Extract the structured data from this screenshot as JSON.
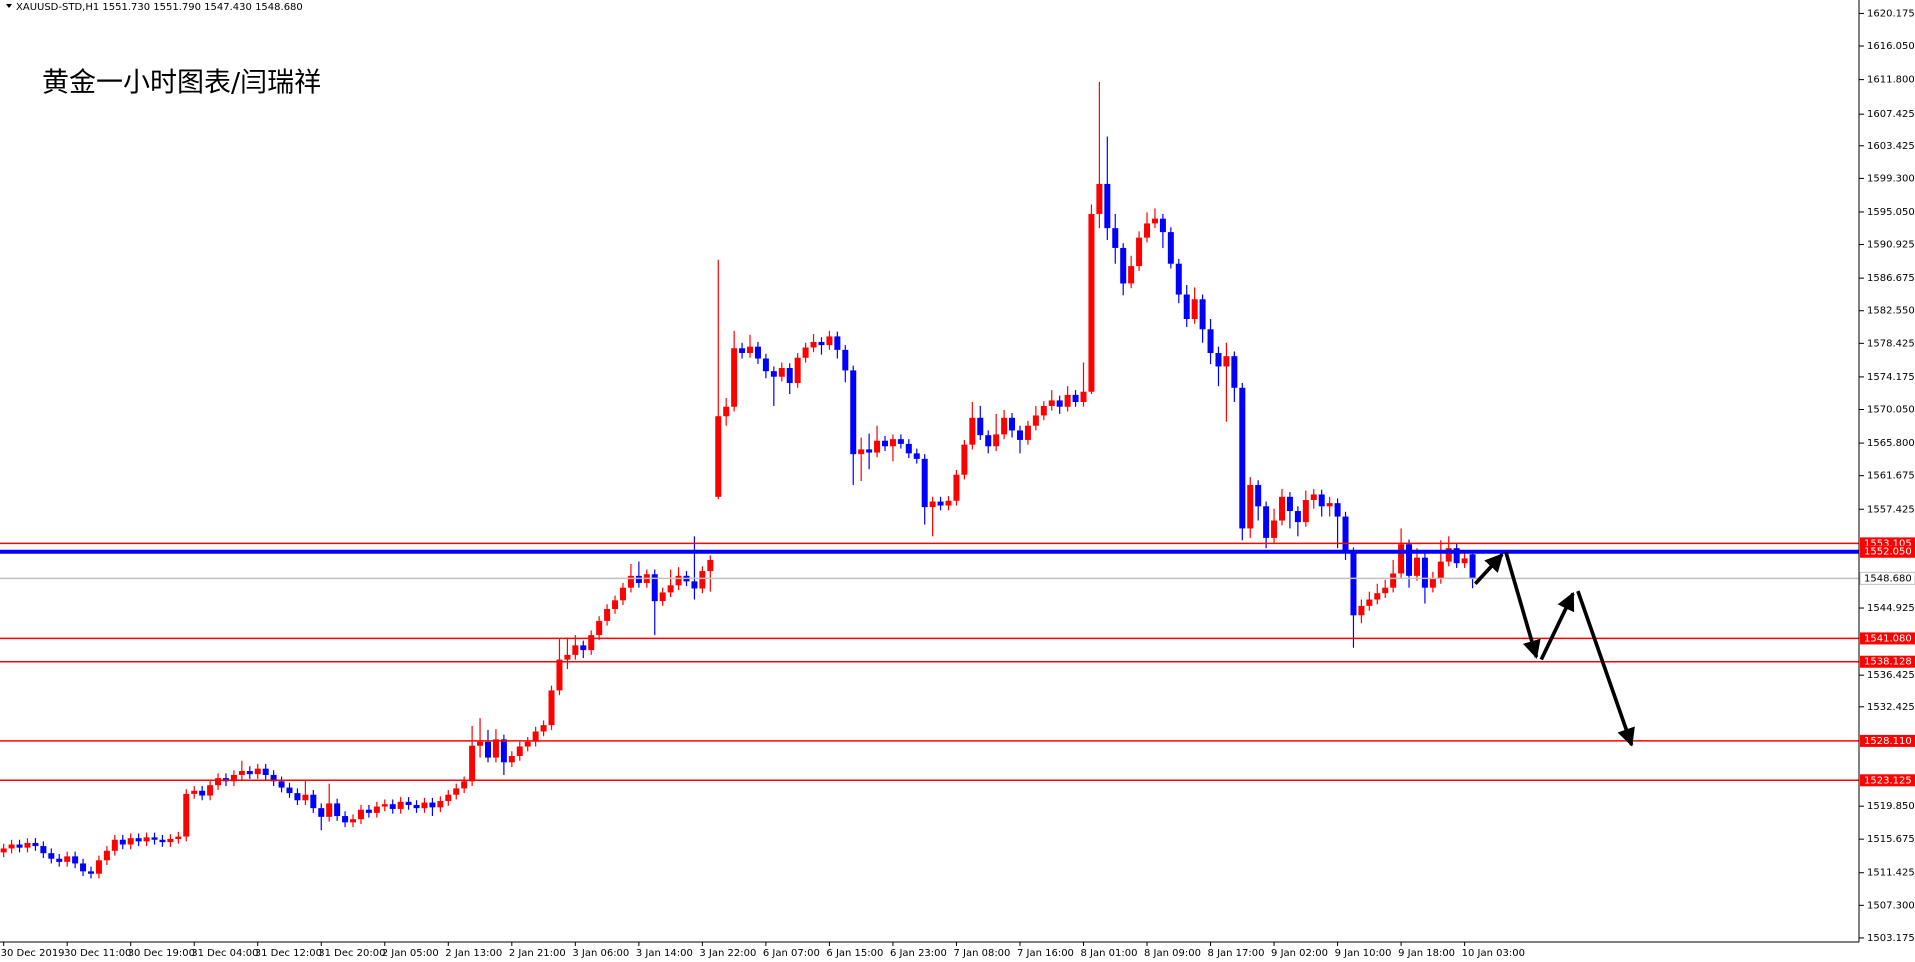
{
  "chart_data": {
    "type": "candlestick",
    "header": "XAUUSD-STD,H1 1551.730 1551.790 1547.430 1548.680",
    "annotation": "黄金一小时图表/闫瑞祥",
    "up_color": "#ff0000",
    "down_color": "#0000ff",
    "ylim": [
      1502.66,
      1621.875
    ],
    "yticks": [
      1620.175,
      {
        "value": 1616.05,
        "label": "1616.050"
      },
      {
        "value": 1611.8,
        "label": "1611.800"
      },
      1607.425,
      1603.425,
      {
        "value": 1599.3,
        "label": "1599.300"
      },
      {
        "value": 1595.05,
        "label": "1595.050"
      },
      1590.925,
      1586.675,
      {
        "value": 1582.55,
        "label": "1582.550"
      },
      1578.425,
      1574.175,
      {
        "value": 1570.05,
        "label": "1570.050"
      },
      {
        "value": 1565.8,
        "label": "1565.800"
      },
      1561.675,
      1557.425,
      1544.925,
      1536.425,
      1532.425,
      {
        "value": 1519.85,
        "label": "1519.850"
      },
      1515.675,
      1511.425,
      {
        "value": 1507.3,
        "label": "1507.300"
      },
      1503.175
    ],
    "xticks": [
      {
        "value": 0,
        "label": "30 Dec 2019"
      },
      {
        "value": 8,
        "label": "30 Dec 11:00"
      },
      {
        "value": 16,
        "label": "30 Dec 19:00"
      },
      {
        "value": 24,
        "label": "31 Dec 04:00"
      },
      {
        "value": 32,
        "label": "31 Dec 12:00"
      },
      {
        "value": 40,
        "label": "31 Dec 20:00"
      },
      {
        "value": 48,
        "label": "2 Jan 05:00"
      },
      {
        "value": 56,
        "label": "2 Jan 13:00"
      },
      {
        "value": 64,
        "label": "2 Jan 21:00"
      },
      {
        "value": 72,
        "label": "3 Jan 06:00"
      },
      {
        "value": 80,
        "label": "3 Jan 14:00"
      },
      {
        "value": 88,
        "label": "3 Jan 22:00"
      },
      {
        "value": 96,
        "label": "6 Jan 07:00"
      },
      {
        "value": 104,
        "label": "6 Jan 15:00"
      },
      {
        "value": 112,
        "label": "6 Jan 23:00"
      },
      {
        "value": 120,
        "label": "7 Jan 08:00"
      },
      {
        "value": 128,
        "label": "7 Jan 16:00"
      },
      {
        "value": 136,
        "label": "8 Jan 01:00"
      },
      {
        "value": 144,
        "label": "8 Jan 09:00"
      },
      {
        "value": 152,
        "label": "8 Jan 17:00"
      },
      {
        "value": 160,
        "label": "9 Jan 02:00"
      },
      {
        "value": 168,
        "label": "9 Jan 10:00"
      },
      {
        "value": 176,
        "label": "9 Jan 18:00"
      },
      {
        "value": 184,
        "label": "10 Jan 03:00"
      }
    ],
    "levels": [
      {
        "value": 1553.105,
        "label": "1553.105",
        "color": "#ff0000"
      },
      {
        "value": 1552.05,
        "label": "1552.050",
        "color": "#0000ff"
      },
      {
        "value": 1548.68,
        "label": "1548.680",
        "color": "#c0c0c0"
      },
      {
        "value": 1541.08,
        "label": "1541.080",
        "color": "#ff0000"
      },
      {
        "value": 1538.128,
        "label": "1538.128",
        "color": "#ff0000"
      },
      {
        "value": 1528.11,
        "label": "1528.110",
        "color": "#ff0000"
      },
      {
        "value": 1523.125,
        "label": "1523.125",
        "color": "#ff0000"
      }
    ],
    "candles": [
      [
        1514.0,
        1515.1,
        1513.4,
        1514.5
      ],
      [
        1514.5,
        1515.6,
        1513.9,
        1515.0
      ],
      [
        1515.0,
        1515.6,
        1514.0,
        1514.6
      ],
      [
        1514.6,
        1515.8,
        1514.0,
        1515.2
      ],
      [
        1515.2,
        1515.8,
        1514.2,
        1514.8
      ],
      [
        1514.8,
        1515.4,
        1513.3,
        1513.9
      ],
      [
        1513.9,
        1514.5,
        1512.6,
        1513.2
      ],
      [
        1513.2,
        1513.8,
        1512.2,
        1512.8
      ],
      [
        1512.8,
        1514.1,
        1512.2,
        1513.5
      ],
      [
        1513.5,
        1514.1,
        1512.0,
        1512.6
      ],
      [
        1512.6,
        1513.2,
        1511.0,
        1511.6
      ],
      [
        1511.6,
        1512.2,
        1510.7,
        1511.3
      ],
      [
        1511.3,
        1513.6,
        1510.7,
        1513.0
      ],
      [
        1513.0,
        1514.8,
        1512.4,
        1514.2
      ],
      [
        1514.2,
        1516.2,
        1513.6,
        1515.6
      ],
      [
        1515.6,
        1516.2,
        1514.4,
        1515.0
      ],
      [
        1515.0,
        1516.4,
        1514.4,
        1515.8
      ],
      [
        1515.8,
        1516.4,
        1514.8,
        1515.4
      ],
      [
        1515.4,
        1516.5,
        1514.8,
        1515.9
      ],
      [
        1515.9,
        1516.5,
        1515.0,
        1515.6
      ],
      [
        1515.6,
        1516.2,
        1514.7,
        1515.3
      ],
      [
        1515.3,
        1516.3,
        1514.7,
        1515.7
      ],
      [
        1515.7,
        1516.6,
        1515.1,
        1516.0
      ],
      [
        1516.0,
        1522.0,
        1515.4,
        1521.4
      ],
      [
        1521.4,
        1522.4,
        1520.8,
        1521.8
      ],
      [
        1521.8,
        1522.4,
        1520.6,
        1521.2
      ],
      [
        1521.2,
        1523.1,
        1520.6,
        1522.5
      ],
      [
        1522.5,
        1524.0,
        1521.9,
        1523.4
      ],
      [
        1523.4,
        1524.0,
        1522.4,
        1523.0
      ],
      [
        1523.0,
        1524.4,
        1522.4,
        1523.8
      ],
      [
        1523.8,
        1525.6,
        1523.2,
        1524.3
      ],
      [
        1524.3,
        1524.9,
        1523.3,
        1523.9
      ],
      [
        1523.9,
        1525.2,
        1523.3,
        1524.6
      ],
      [
        1524.6,
        1525.2,
        1523.2,
        1523.8
      ],
      [
        1523.8,
        1524.4,
        1522.4,
        1523.0
      ],
      [
        1523.0,
        1523.6,
        1521.6,
        1522.2
      ],
      [
        1522.2,
        1522.8,
        1520.9,
        1521.5
      ],
      [
        1521.5,
        1522.1,
        1520.0,
        1520.6
      ],
      [
        1520.6,
        1523.2,
        1520.0,
        1521.3
      ],
      [
        1521.3,
        1521.9,
        1519.0,
        1519.6
      ],
      [
        1519.6,
        1520.2,
        1516.8,
        1518.5
      ],
      [
        1518.5,
        1522.7,
        1517.9,
        1520.2
      ],
      [
        1520.2,
        1520.8,
        1518.0,
        1518.6
      ],
      [
        1518.6,
        1519.2,
        1517.2,
        1517.8
      ],
      [
        1517.8,
        1518.8,
        1517.2,
        1518.2
      ],
      [
        1518.2,
        1520.0,
        1517.6,
        1519.4
      ],
      [
        1519.4,
        1520.0,
        1518.4,
        1519.0
      ],
      [
        1519.0,
        1520.4,
        1518.4,
        1519.8
      ],
      [
        1519.8,
        1520.7,
        1519.2,
        1520.1
      ],
      [
        1520.1,
        1520.7,
        1518.9,
        1519.5
      ],
      [
        1519.5,
        1521.0,
        1518.9,
        1520.4
      ],
      [
        1520.4,
        1521.0,
        1519.4,
        1520.0
      ],
      [
        1520.0,
        1520.6,
        1519.0,
        1519.6
      ],
      [
        1519.6,
        1520.9,
        1519.0,
        1520.3
      ],
      [
        1520.3,
        1520.9,
        1518.6,
        1519.7
      ],
      [
        1519.7,
        1521.1,
        1519.1,
        1520.5
      ],
      [
        1520.5,
        1521.9,
        1519.9,
        1521.3
      ],
      [
        1521.3,
        1522.7,
        1520.7,
        1522.1
      ],
      [
        1522.1,
        1523.6,
        1521.5,
        1523.0
      ],
      [
        1523.0,
        1530.0,
        1522.4,
        1527.5
      ],
      [
        1527.5,
        1531.0,
        1526.0,
        1528.0
      ],
      [
        1528.0,
        1529.5,
        1525.4,
        1526.0
      ],
      [
        1526.0,
        1529.6,
        1525.4,
        1528.3
      ],
      [
        1528.3,
        1528.9,
        1523.8,
        1525.4
      ],
      [
        1525.4,
        1526.8,
        1524.8,
        1526.2
      ],
      [
        1526.2,
        1528.0,
        1525.6,
        1527.4
      ],
      [
        1527.4,
        1528.6,
        1526.8,
        1528.0
      ],
      [
        1528.0,
        1529.9,
        1527.4,
        1529.3
      ],
      [
        1529.3,
        1530.7,
        1528.7,
        1530.1
      ],
      [
        1530.1,
        1535.1,
        1529.5,
        1534.5
      ],
      [
        1534.5,
        1541.0,
        1533.9,
        1538.4
      ],
      [
        1538.4,
        1541.2,
        1537.2,
        1539.0
      ],
      [
        1539.0,
        1541.5,
        1538.4,
        1540.2
      ],
      [
        1540.2,
        1540.8,
        1538.6,
        1539.6
      ],
      [
        1539.6,
        1542.1,
        1539.0,
        1541.5
      ],
      [
        1541.5,
        1543.9,
        1540.9,
        1543.3
      ],
      [
        1543.3,
        1545.4,
        1542.7,
        1544.8
      ],
      [
        1544.8,
        1546.5,
        1544.2,
        1545.9
      ],
      [
        1545.9,
        1548.1,
        1545.3,
        1547.5
      ],
      [
        1547.5,
        1550.5,
        1546.9,
        1549.0
      ],
      [
        1549.0,
        1550.8,
        1547.5,
        1548.1
      ],
      [
        1548.1,
        1549.8,
        1547.5,
        1549.2
      ],
      [
        1549.2,
        1549.8,
        1541.5,
        1545.8
      ],
      [
        1545.8,
        1547.5,
        1545.2,
        1546.9
      ],
      [
        1546.9,
        1549.8,
        1546.3,
        1547.8
      ],
      [
        1547.8,
        1550.1,
        1547.2,
        1549.0
      ],
      [
        1549.0,
        1549.6,
        1547.7,
        1548.3
      ],
      [
        1548.3,
        1554.0,
        1546.0,
        1547.4
      ],
      [
        1547.4,
        1550.2,
        1546.8,
        1549.6
      ],
      [
        1549.6,
        1551.6,
        1547.0,
        1551.0
      ],
      [
        1559.0,
        1589.0,
        1558.7,
        1569.2
      ],
      [
        1569.2,
        1571.5,
        1568.0,
        1570.4
      ],
      [
        1570.4,
        1580.0,
        1569.8,
        1577.8
      ],
      [
        1577.8,
        1578.5,
        1576.5,
        1577.2
      ],
      [
        1577.2,
        1579.5,
        1576.6,
        1578.0
      ],
      [
        1578.0,
        1578.6,
        1575.8,
        1576.5
      ],
      [
        1576.5,
        1577.1,
        1574.0,
        1574.9
      ],
      [
        1574.9,
        1575.5,
        1570.5,
        1574.2
      ],
      [
        1574.2,
        1576.0,
        1573.6,
        1575.3
      ],
      [
        1575.3,
        1575.9,
        1572.0,
        1573.4
      ],
      [
        1573.4,
        1577.2,
        1572.8,
        1576.6
      ],
      [
        1576.6,
        1578.5,
        1576.0,
        1577.9
      ],
      [
        1577.9,
        1579.6,
        1577.3,
        1578.6
      ],
      [
        1578.6,
        1579.2,
        1577.0,
        1578.2
      ],
      [
        1578.2,
        1580.0,
        1577.6,
        1579.3
      ],
      [
        1579.3,
        1579.9,
        1576.5,
        1577.6
      ],
      [
        1577.6,
        1578.2,
        1573.5,
        1575.0
      ],
      [
        1575.0,
        1575.6,
        1560.5,
        1564.4
      ],
      [
        1564.4,
        1566.5,
        1561.0,
        1565.0
      ],
      [
        1565.0,
        1567.0,
        1562.5,
        1564.6
      ],
      [
        1564.6,
        1568.0,
        1564.0,
        1566.1
      ],
      [
        1566.1,
        1566.7,
        1564.8,
        1565.4
      ],
      [
        1565.4,
        1566.9,
        1563.5,
        1566.3
      ],
      [
        1566.3,
        1566.9,
        1565.1,
        1565.7
      ],
      [
        1565.7,
        1566.3,
        1563.9,
        1564.5
      ],
      [
        1564.5,
        1565.1,
        1563.2,
        1563.8
      ],
      [
        1563.8,
        1564.4,
        1555.5,
        1557.7
      ],
      [
        1557.7,
        1559.0,
        1554.0,
        1558.4
      ],
      [
        1558.4,
        1559.0,
        1557.3,
        1557.9
      ],
      [
        1557.9,
        1559.1,
        1557.3,
        1558.5
      ],
      [
        1558.5,
        1562.4,
        1557.9,
        1561.8
      ],
      [
        1561.8,
        1566.2,
        1561.2,
        1565.6
      ],
      [
        1565.6,
        1571.0,
        1565.0,
        1569.0
      ],
      [
        1569.0,
        1570.5,
        1566.2,
        1566.8
      ],
      [
        1566.8,
        1567.4,
        1564.5,
        1565.4
      ],
      [
        1565.4,
        1569.5,
        1564.8,
        1566.9
      ],
      [
        1566.9,
        1570.0,
        1566.3,
        1569.0
      ],
      [
        1569.0,
        1569.6,
        1566.5,
        1567.4
      ],
      [
        1567.4,
        1568.0,
        1564.5,
        1566.2
      ],
      [
        1566.2,
        1568.6,
        1565.6,
        1568.0
      ],
      [
        1568.0,
        1570.5,
        1567.4,
        1569.3
      ],
      [
        1569.3,
        1571.1,
        1568.7,
        1570.5
      ],
      [
        1570.5,
        1572.5,
        1569.9,
        1571.2
      ],
      [
        1571.2,
        1571.8,
        1569.5,
        1570.4
      ],
      [
        1570.4,
        1573.0,
        1569.8,
        1571.9
      ],
      [
        1571.9,
        1572.5,
        1570.4,
        1571.0
      ],
      [
        1571.0,
        1576.0,
        1570.4,
        1572.3
      ],
      [
        1572.3,
        1596.0,
        1572.0,
        1594.8
      ],
      [
        1594.8,
        1611.5,
        1593.0,
        1598.6
      ],
      [
        1598.6,
        1604.6,
        1591.5,
        1593.0
      ],
      [
        1593.0,
        1594.8,
        1588.5,
        1590.5
      ],
      [
        1590.5,
        1591.1,
        1584.5,
        1586.0
      ],
      [
        1586.0,
        1589.5,
        1585.4,
        1588.2
      ],
      [
        1588.2,
        1592.6,
        1587.6,
        1591.8
      ],
      [
        1591.8,
        1595.0,
        1591.2,
        1593.6
      ],
      [
        1593.6,
        1595.5,
        1593.0,
        1594.2
      ],
      [
        1594.2,
        1594.8,
        1590.5,
        1592.5
      ],
      [
        1592.5,
        1593.1,
        1587.9,
        1588.5
      ],
      [
        1588.5,
        1589.1,
        1583.5,
        1584.6
      ],
      [
        1584.6,
        1585.8,
        1580.5,
        1581.5
      ],
      [
        1581.5,
        1585.5,
        1580.9,
        1584.0
      ],
      [
        1584.0,
        1584.6,
        1578.5,
        1580.2
      ],
      [
        1580.2,
        1581.5,
        1575.8,
        1577.2
      ],
      [
        1577.2,
        1578.0,
        1573.0,
        1575.5
      ],
      [
        1575.5,
        1578.5,
        1568.5,
        1576.8
      ],
      [
        1576.8,
        1577.4,
        1571.0,
        1572.8
      ],
      [
        1572.8,
        1573.4,
        1553.5,
        1555.0
      ],
      [
        1555.0,
        1561.5,
        1553.8,
        1560.5
      ],
      [
        1560.5,
        1561.1,
        1556.0,
        1557.8
      ],
      [
        1557.8,
        1558.4,
        1552.5,
        1553.8
      ],
      [
        1553.8,
        1557.5,
        1553.2,
        1556.0
      ],
      [
        1556.0,
        1560.0,
        1555.4,
        1559.0
      ],
      [
        1559.0,
        1559.6,
        1555.0,
        1557.2
      ],
      [
        1557.2,
        1557.8,
        1554.0,
        1555.8
      ],
      [
        1555.8,
        1559.8,
        1555.2,
        1558.6
      ],
      [
        1558.6,
        1560.0,
        1557.5,
        1559.3
      ],
      [
        1559.3,
        1559.9,
        1556.5,
        1557.8
      ],
      [
        1557.8,
        1559.0,
        1556.5,
        1558.2
      ],
      [
        1558.2,
        1558.8,
        1552.5,
        1556.5
      ],
      [
        1556.5,
        1557.1,
        1551.0,
        1552.0
      ],
      [
        1552.0,
        1552.6,
        1539.9,
        1544.0
      ],
      [
        1544.0,
        1546.0,
        1543.0,
        1545.2
      ],
      [
        1545.2,
        1547.0,
        1544.6,
        1546.0
      ],
      [
        1546.0,
        1548.0,
        1545.4,
        1546.8
      ],
      [
        1546.8,
        1548.5,
        1546.2,
        1547.5
      ],
      [
        1547.5,
        1551.0,
        1546.9,
        1549.3
      ],
      [
        1549.3,
        1555.0,
        1548.7,
        1553.0
      ],
      [
        1553.0,
        1553.6,
        1547.5,
        1549.0
      ],
      [
        1549.0,
        1552.5,
        1548.4,
        1551.3
      ],
      [
        1551.3,
        1551.9,
        1545.5,
        1547.5
      ],
      [
        1547.5,
        1549.5,
        1546.9,
        1548.6
      ],
      [
        1548.6,
        1553.5,
        1548.0,
        1550.8
      ],
      [
        1550.8,
        1554.0,
        1550.2,
        1552.5
      ],
      [
        1552.5,
        1553.1,
        1550.0,
        1550.6
      ],
      [
        1550.6,
        1552.0,
        1550.0,
        1551.2
      ],
      [
        1551.73,
        1551.79,
        1547.43,
        1548.68
      ]
    ]
  }
}
